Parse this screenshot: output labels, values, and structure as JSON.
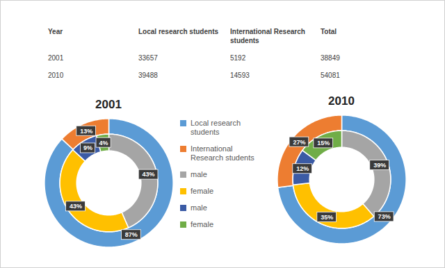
{
  "table": {
    "columns": [
      "Year",
      "Local research students",
      "International Research students",
      "Total"
    ],
    "rows": [
      [
        2001,
        33657,
        5192,
        38849
      ],
      [
        2010,
        39488,
        14593,
        54081
      ]
    ]
  },
  "chart_data": [
    {
      "type": "donut",
      "title": "2001",
      "data_labels": true,
      "legend": "center",
      "rings": [
        {
          "categories": [
            "Local research students",
            "International Research students"
          ],
          "values": [
            87,
            13
          ],
          "value_labels": [
            "87%",
            "13%"
          ],
          "colors": [
            "#5b9bd5",
            "#ed7d31"
          ]
        },
        {
          "categories": [
            "male",
            "female",
            "male",
            "female"
          ],
          "values": [
            43,
            43,
            9,
            4
          ],
          "value_labels": [
            "43%",
            "43%",
            "9%",
            "4%"
          ],
          "colors": [
            "#a5a5a5",
            "#ffc000",
            "#3b5ba5",
            "#70ad47"
          ]
        }
      ]
    },
    {
      "type": "donut",
      "title": "2010",
      "data_labels": true,
      "rings": [
        {
          "categories": [
            "Local research students",
            "International Research students"
          ],
          "values": [
            73,
            27
          ],
          "value_labels": [
            "73%",
            "27%"
          ],
          "colors": [
            "#5b9bd5",
            "#ed7d31"
          ]
        },
        {
          "categories": [
            "male",
            "female",
            "male",
            "female"
          ],
          "values": [
            39,
            35,
            12,
            15
          ],
          "value_labels": [
            "39%",
            "35%",
            "12%",
            "15%"
          ],
          "colors": [
            "#a5a5a5",
            "#ffc000",
            "#3b5ba5",
            "#70ad47"
          ]
        }
      ]
    }
  ]
}
